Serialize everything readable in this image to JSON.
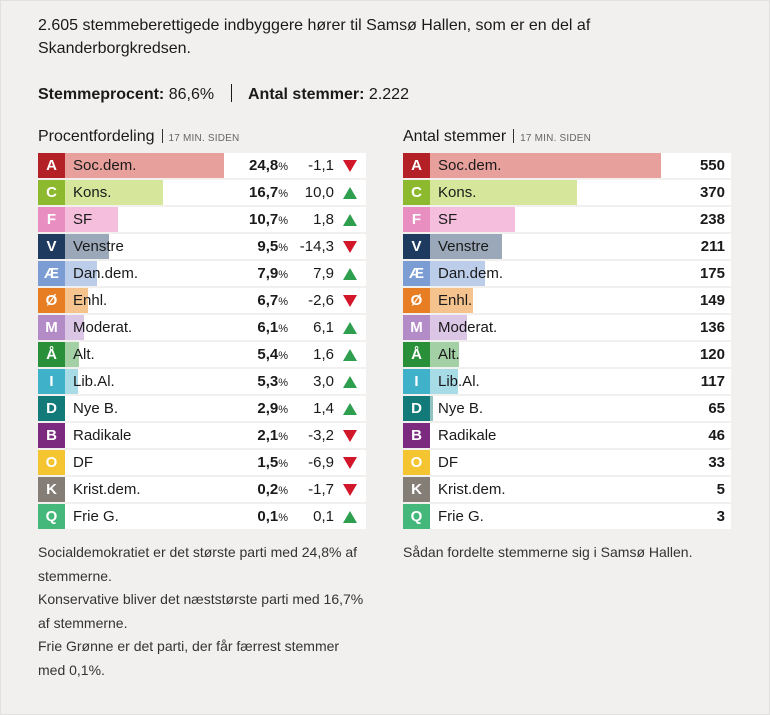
{
  "intro": "2.605 stemmeberettigede indbyggere hører til Samsø Hallen, som er en del af Skanderborgkredsen.",
  "stats": {
    "turnout_label": "Stemmeprocent:",
    "turnout_value": "86,6%",
    "votes_label": "Antal stemmer:",
    "votes_value": "2.222"
  },
  "left_panel": {
    "title": "Procentfordeling",
    "time": "17 MIN. SIDEN"
  },
  "right_panel": {
    "title": "Antal stemmer",
    "time": "17 MIN. SIDEN"
  },
  "percent_sign": "%",
  "chart_data": [
    {
      "type": "bar",
      "title": "Procentfordeling",
      "unit": "%",
      "categories": [
        "Soc.dem.",
        "Kons.",
        "SF",
        "Venstre",
        "Dan.dem.",
        "Enhl.",
        "Moderat.",
        "Alt.",
        "Lib.Al.",
        "Nye B.",
        "Radikale",
        "DF",
        "Krist.dem.",
        "Frie G."
      ],
      "values": [
        24.8,
        16.7,
        10.7,
        9.5,
        7.9,
        6.7,
        6.1,
        5.4,
        5.3,
        2.9,
        2.1,
        1.5,
        0.2,
        0.1
      ],
      "changes": [
        -1.1,
        10.0,
        1.8,
        -14.3,
        7.9,
        -2.6,
        6.1,
        1.6,
        3.0,
        1.4,
        -3.2,
        -6.9,
        -1.7,
        0.1
      ]
    },
    {
      "type": "bar",
      "title": "Antal stemmer",
      "categories": [
        "Soc.dem.",
        "Kons.",
        "SF",
        "Venstre",
        "Dan.dem.",
        "Enhl.",
        "Moderat.",
        "Alt.",
        "Lib.Al.",
        "Nye B.",
        "Radikale",
        "DF",
        "Krist.dem.",
        "Frie G."
      ],
      "values": [
        550,
        370,
        238,
        211,
        175,
        149,
        136,
        120,
        117,
        65,
        46,
        33,
        5,
        3
      ]
    }
  ],
  "parties": [
    {
      "letter": "A",
      "name": "Soc.dem.",
      "pct": "24,8",
      "change": "-1,1",
      "dir": "down",
      "votes": "550",
      "color": "#b32025",
      "light": "#e8a09c"
    },
    {
      "letter": "C",
      "name": "Kons.",
      "pct": "16,7",
      "change": "10,0",
      "dir": "up",
      "votes": "370",
      "color": "#8db92e",
      "light": "#d6e69a"
    },
    {
      "letter": "F",
      "name": "SF",
      "pct": "10,7",
      "change": "1,8",
      "dir": "up",
      "votes": "238",
      "color": "#e88ec0",
      "light": "#f5bedc"
    },
    {
      "letter": "V",
      "name": "Venstre",
      "pct": "9,5",
      "change": "-14,3",
      "dir": "down",
      "votes": "211",
      "color": "#1f3a5f",
      "light": "#9aa8b9"
    },
    {
      "letter": "Æ",
      "name": "Dan.dem.",
      "pct": "7,9",
      "change": "7,9",
      "dir": "up",
      "votes": "175",
      "color": "#7b9dd4",
      "light": "#bccde9"
    },
    {
      "letter": "Ø",
      "name": "Enhl.",
      "pct": "6,7",
      "change": "-2,6",
      "dir": "down",
      "votes": "149",
      "color": "#e87e23",
      "light": "#f5c38e"
    },
    {
      "letter": "M",
      "name": "Moderat.",
      "pct": "6,1",
      "change": "6,1",
      "dir": "up",
      "votes": "136",
      "color": "#b28bc7",
      "light": "#dbc6e6"
    },
    {
      "letter": "Å",
      "name": "Alt.",
      "pct": "5,4",
      "change": "1,6",
      "dir": "up",
      "votes": "120",
      "color": "#2a8f39",
      "light": "#a3d1a5"
    },
    {
      "letter": "I",
      "name": "Lib.Al.",
      "pct": "5,3",
      "change": "3,0",
      "dir": "up",
      "votes": "117",
      "color": "#3fb2c9",
      "light": "#a7dbe6"
    },
    {
      "letter": "D",
      "name": "Nye B.",
      "pct": "2,9",
      "change": "1,4",
      "dir": "up",
      "votes": "65",
      "color": "#137a7a",
      "light": "#93c3c0"
    },
    {
      "letter": "B",
      "name": "Radikale",
      "pct": "2,1",
      "change": "-3,2",
      "dir": "down",
      "votes": "46",
      "color": "#7b2a80",
      "light": "#c8a2cb"
    },
    {
      "letter": "O",
      "name": "DF",
      "pct": "1,5",
      "change": "-6,9",
      "dir": "down",
      "votes": "33",
      "color": "#f5c431",
      "light": "#fae199"
    },
    {
      "letter": "K",
      "name": "Krist.dem.",
      "pct": "0,2",
      "change": "-1,7",
      "dir": "down",
      "votes": "5",
      "color": "#857e77",
      "light": "#c8c3bf"
    },
    {
      "letter": "Q",
      "name": "Frie G.",
      "pct": "0,1",
      "change": "0,1",
      "dir": "up",
      "votes": "3",
      "color": "#44b77b",
      "light": "#a8dcbf"
    }
  ],
  "colors": {
    "up": "#2e9e4f",
    "down": "#d3172b"
  },
  "notes": [
    "Socialdemokratiet er det største parti med 24,8% af stemmerne.",
    "Konservative bliver det næststørste parti med 16,7% af stemmerne.",
    "Frie Grønne er det parti, der får færrest stemmer med 0,1%."
  ],
  "right_note": "Sådan fordelte stemmerne sig i Samsø Hallen."
}
